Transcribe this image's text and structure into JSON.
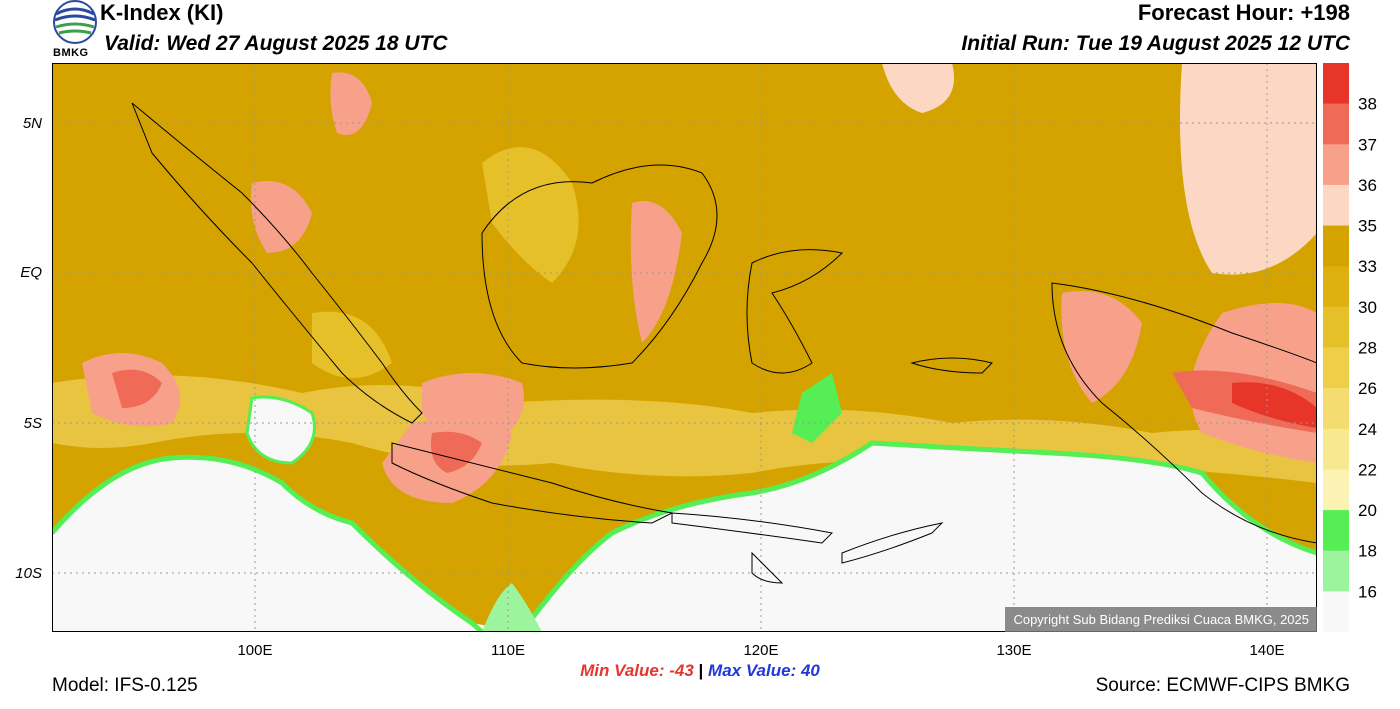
{
  "header": {
    "title": "K-Index (KI)",
    "valid": "Valid: Wed 27 August 2025 18 UTC",
    "forecast_hour": "Forecast Hour: +198",
    "initial_run": "Initial Run: Tue 19 August 2025 12 UTC",
    "logo_text": "BMKG"
  },
  "map": {
    "lat_labels": [
      "5N",
      "EQ",
      "5S",
      "10S"
    ],
    "lon_labels": [
      "100E",
      "110E",
      "120E",
      "130E",
      "140E"
    ],
    "copyright": "Copyright Sub Bidang Prediksi Cuaca BMKG, 2025",
    "colors": {
      "ocean_high": "#d4a300",
      "mid": "#e8c440",
      "land_low": "#f8f8f8",
      "green": "#55ee55",
      "pink": "#f5a58a",
      "red": "#ee5040"
    }
  },
  "legend": {
    "levels": [
      "38",
      "37",
      "36",
      "35",
      "33",
      "30",
      "28",
      "26",
      "24",
      "22",
      "20",
      "18",
      "16"
    ],
    "colors": [
      "#e8352a",
      "#f06a58",
      "#f7a08a",
      "#fcd8c4",
      "#d4a300",
      "#ddb010",
      "#e6c028",
      "#efce48",
      "#f4dc70",
      "#f8e890",
      "#fbf2b4",
      "#55ee55",
      "#9cf59c",
      "#f8f8f8"
    ]
  },
  "footer": {
    "min_value": "Min Value: -43",
    "max_value": "Max Value:  40",
    "separator": "|",
    "model": "Model: IFS-0.125",
    "source": "Source: ECMWF-CIPS BMKG"
  }
}
